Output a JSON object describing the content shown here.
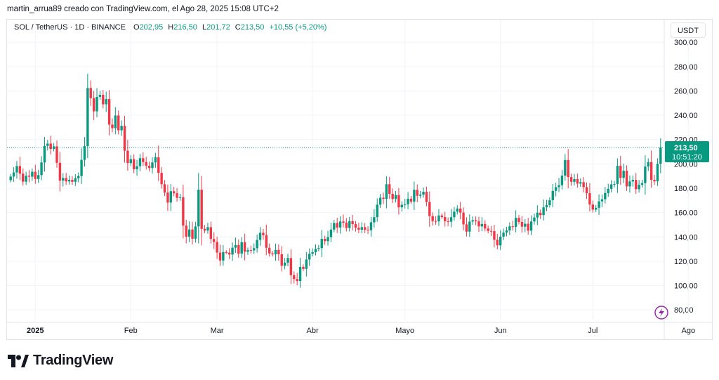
{
  "header": {
    "attribution": "martin_arrua89 creado con TradingView.com, el Ago 28, 2025 15:08 UTC+2"
  },
  "legend": {
    "symbol": "SOL / TetherUS · 1D · BINANCE",
    "open_label": "O",
    "open": "202,95",
    "high_label": "H",
    "high": "216,50",
    "low_label": "L",
    "low": "201,72",
    "close_label": "C",
    "close": "213,50",
    "change": "+10,55 (+5,20%)"
  },
  "currency": "USDT",
  "footer": {
    "brand": "TradingView"
  },
  "colors": {
    "up": "#089981",
    "down": "#f23645",
    "grid": "#f0f3fa",
    "price_line": "#089981",
    "text": "#131722",
    "alert": "#9c27b0"
  },
  "chart_data": {
    "type": "candlestick",
    "price_label": "213,50",
    "countdown": "10:51:20",
    "ylim": [
      72,
      303
    ],
    "y_ticks": [
      {
        "value": 80,
        "label": "80,00"
      },
      {
        "value": 100,
        "label": "100,00"
      },
      {
        "value": 120,
        "label": "120,00"
      },
      {
        "value": 140,
        "label": "140,00"
      },
      {
        "value": 160,
        "label": "160,00"
      },
      {
        "value": 180,
        "label": "180,00"
      },
      {
        "value": 200,
        "label": "200,00"
      },
      {
        "value": 220,
        "label": "220,00"
      },
      {
        "value": 240,
        "label": "240,00"
      },
      {
        "value": 260,
        "label": "260,00"
      },
      {
        "value": 280,
        "label": "280,00"
      },
      {
        "value": 300,
        "label": "300,00"
      }
    ],
    "x_ticks": [
      {
        "date": "2025-01-01",
        "label": "2025"
      },
      {
        "date": "2025-02-01",
        "label": "Feb"
      },
      {
        "date": "2025-03-01",
        "label": "Mar"
      },
      {
        "date": "2025-04-01",
        "label": "Abr"
      },
      {
        "date": "2025-05-01",
        "label": "Mayo"
      },
      {
        "date": "2025-06-01",
        "label": "Jun"
      },
      {
        "date": "2025-07-01",
        "label": "Jul"
      },
      {
        "date": "2025-08-01",
        "label": "Ago"
      }
    ],
    "start_date": "2024-12-24",
    "last_close": 213.5,
    "closes": [
      189.6,
      193.0,
      198.2,
      192.0,
      185.4,
      190.3,
      189.5,
      193.5,
      187.6,
      190.8,
      201.2,
      214.8,
      216.7,
      212.3,
      214.4,
      200.9,
      186.3,
      188.4,
      185.6,
      186.9,
      185.3,
      188.2,
      190.0,
      203.3,
      214.6,
      262.4,
      254.1,
      243.2,
      255.1,
      256.8,
      249.0,
      253.3,
      232.3,
      229.4,
      239.8,
      227.6,
      231.3,
      210.8,
      200.7,
      203.9,
      195.6,
      198.1,
      204.7,
      201.5,
      198.5,
      196.6,
      201.2,
      205.4,
      192.6,
      183.3,
      176.4,
      168.2,
      177.5,
      175.9,
      172.1,
      172.6,
      149.3,
      140.2,
      146.1,
      138.5,
      148.6,
      178.8,
      146.6,
      145.2,
      148.0,
      138.3,
      135.8,
      127.1,
      120.6,
      127.5,
      127.1,
      125.5,
      131.1,
      133.3,
      126.2,
      135.6,
      127.8,
      129.1,
      128.9,
      130.7,
      137.5,
      143.4,
      141.4,
      131.0,
      126.4,
      125.6,
      129.3,
      125.7,
      116.2,
      118.8,
      122.6,
      108.5,
      105.4,
      103.7,
      115.3,
      113.7,
      121.4,
      126.1,
      127.4,
      130.2,
      130.8,
      138.4,
      136.5,
      139.8,
      146.0,
      151.4,
      147.7,
      152.7,
      151.7,
      147.3,
      152.9,
      150.5,
      147.5,
      145.9,
      148.0,
      145.8,
      145.4,
      152.0,
      156.2,
      166.5,
      172.2,
      171.3,
      183.3,
      175.4,
      171.1,
      174.4,
      164.3,
      166.4,
      166.8,
      171.4,
      169.0,
      178.7,
      173.8,
      174.7,
      177.1,
      168.7,
      157.1,
      153.0,
      152.8,
      157.6,
      156.3,
      152.9,
      152.5,
      156.2,
      160.7,
      163.3,
      160.0,
      150.3,
      144.3,
      152.6,
      153.7,
      152.8,
      148.6,
      150.6,
      146.9,
      144.9,
      144.7,
      137.6,
      133.1,
      140.2,
      143.5,
      145.3,
      148.7,
      148.3,
      155.6,
      152.3,
      148.4,
      150.8,
      145.1,
      152.7,
      155.9,
      159.9,
      157.9,
      164.3,
      166.1,
      170.2,
      177.8,
      180.9,
      182.5,
      190.4,
      203.2,
      189.2,
      185.3,
      187.5,
      183.8,
      185.0,
      180.9,
      175.9,
      166.6,
      162.4,
      163.9,
      169.2,
      170.9,
      176.0,
      179.5,
      183.2,
      183.5,
      198.4,
      188.5,
      194.4,
      181.5,
      185.6,
      186.9,
      179.2,
      182.9,
      184.2,
      197.8,
      201.5,
      186.9,
      185.7,
      200.1,
      213.5
    ]
  }
}
